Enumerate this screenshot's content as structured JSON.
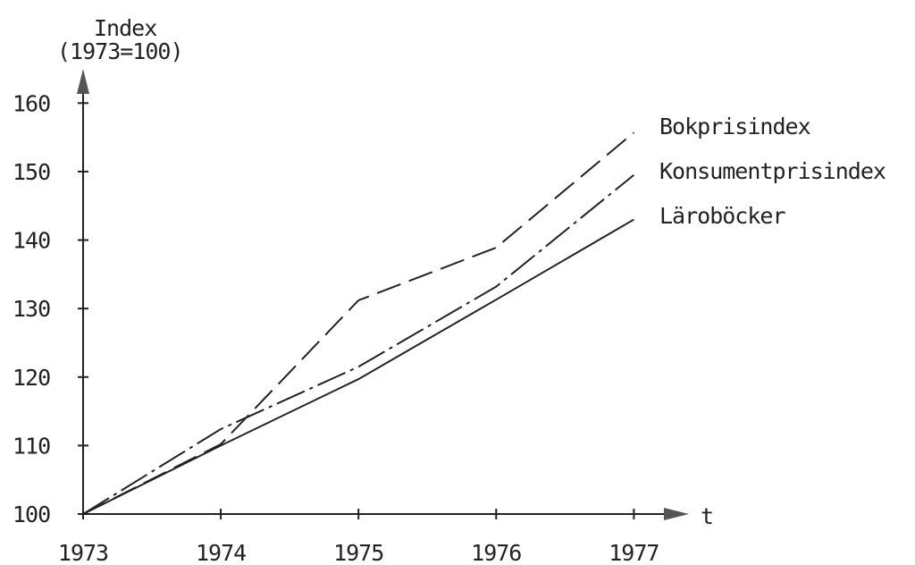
{
  "chart_data": {
    "type": "line",
    "ylabel": [
      "Index",
      "(1973=100)"
    ],
    "xlabel": "t",
    "x": [
      1973,
      1974,
      1975,
      1976,
      1977
    ],
    "xlim": [
      1973,
      1977.4
    ],
    "xticks": [
      1973,
      1974,
      1975,
      1976,
      1977
    ],
    "ylim": [
      100,
      165
    ],
    "yticks": [
      100,
      110,
      120,
      130,
      140,
      150,
      160
    ],
    "series": [
      {
        "name": "Bokprisindex",
        "color": "#222222",
        "dash": "long-dash",
        "values": [
          100,
          110.2,
          131.2,
          138.9,
          155.7
        ]
      },
      {
        "name": "Konsumentprisindex",
        "color": "#222222",
        "dash": "dash-dot",
        "values": [
          100,
          112.4,
          121.5,
          133.2,
          149.5
        ]
      },
      {
        "name": "Läroböcker",
        "color": "#222222",
        "dash": "solid",
        "values": [
          100,
          110,
          119.7,
          131.3,
          143
        ]
      }
    ]
  }
}
